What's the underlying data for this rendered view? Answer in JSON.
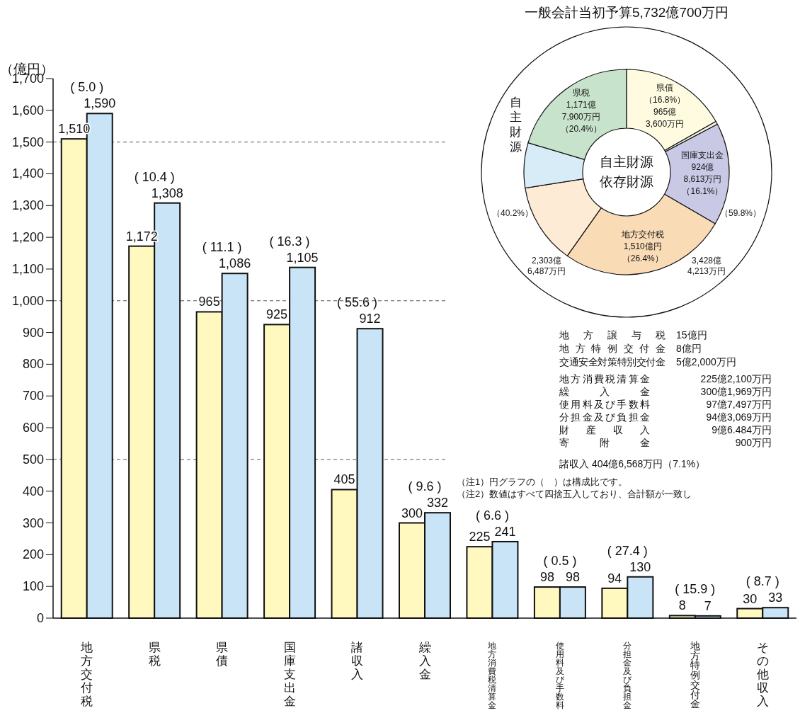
{
  "chart_data": [
    {
      "type": "bar",
      "ylabel": "（億円）",
      "categories": [
        "地方交付税",
        "県税",
        "県債",
        "国庫支出金",
        "諸収入",
        "繰入金",
        "地方消費税清算金",
        "使用料及び手数料",
        "分担金及び負担金",
        "地方特例交付金",
        "その他収入"
      ],
      "series": [
        {
          "color": "#fff9c0",
          "values": [
            1510,
            1172,
            965,
            925,
            405,
            300,
            225,
            98,
            94,
            8,
            30
          ],
          "value_labels": [
            "1,510",
            "1,172",
            "965",
            "925",
            "405",
            "300",
            "225",
            "98",
            "94",
            "8",
            "30"
          ]
        },
        {
          "color": "#c8e4f6",
          "values": [
            1590,
            1308,
            1086,
            1105,
            912,
            332,
            241,
            98,
            130,
            7,
            33
          ],
          "value_labels": [
            "1,590",
            "1,308",
            "1,086",
            "1,105",
            "912",
            "332",
            "241",
            "98",
            "130",
            "7",
            "33"
          ]
        }
      ],
      "ylim": [
        0,
        1700
      ],
      "yticks": [
        0,
        {
          "value": 100,
          "label": "100"
        },
        200,
        300,
        400,
        500,
        600,
        700,
        800,
        900,
        {
          "value": 1000,
          "label": "1,000"
        },
        {
          "value": 1100,
          "label": "1,100"
        },
        {
          "value": 1200,
          "label": "1,200"
        },
        {
          "value": 1300,
          "label": "1,300"
        },
        {
          "value": 1400,
          "label": "1,400"
        },
        {
          "value": 1500,
          "label": "1,500"
        },
        {
          "value": 1600,
          "label": "1,600"
        },
        {
          "value": 1700,
          "label": "1,700"
        }
      ],
      "ref_lines": [
        {
          "axis": "y",
          "value": 500,
          "line_style": "dashed"
        },
        {
          "axis": "y",
          "value": 1000,
          "line_style": "dashed"
        },
        {
          "axis": "y",
          "value": 1500,
          "line_style": "dashed"
        }
      ],
      "annotations": [
        {
          "text": "( 5.0 )",
          "x": "地方交付税",
          "y": 1590
        },
        {
          "text": "( 10.4 )",
          "x": "県税",
          "y": 1308
        },
        {
          "text": "( 11.1 )",
          "x": "県債",
          "y": 1086
        },
        {
          "text": "( 16.3 )",
          "x": "国庫支出金",
          "y": 1105
        },
        {
          "text": "( 55.6 )",
          "x": "諸収入",
          "y": 912
        },
        {
          "text": "( 9.6 )",
          "x": "繰入金",
          "y": 332
        },
        {
          "text": "( 6.6 )",
          "x": "地方消費税清算金",
          "y": 241
        },
        {
          "text": "( 0.5 )",
          "x": "使用料及び手数料",
          "y": 98
        },
        {
          "text": "( 27.4 )",
          "x": "分担金及び負担金",
          "y": 130
        },
        {
          "text": "( 15.9 )",
          "x": "地方特例交付金",
          "y": 8
        },
        {
          "text": "( 8.7 )",
          "x": "その他収入",
          "y": 33
        }
      ]
    },
    {
      "type": "donut",
      "title": "一般会計当初予算5,732億700万円",
      "categories": [
        "県債",
        null,
        "国庫支出金",
        "地方交付税",
        null,
        null,
        "県税"
      ],
      "values": [
        16.8,
        0.5,
        16.1,
        26.4,
        12.7,
        7.1,
        20.4
      ],
      "colors": [
        "#fefbe0",
        "#f3efe0",
        "#c9c9e6",
        "#f9dcb6",
        "#fdebd5",
        "#d8ecf8",
        "#c8e3cc"
      ],
      "value_labels": [
        "（16.8%）965億3,600万円",
        null,
        "924億8,613万円（16.1%）",
        "1,510億円（26.4%）",
        null,
        null,
        "1,171億7,900万円（20.4%）"
      ],
      "annotations": [
        "自主財源",
        "依存財源",
        "自主財源",
        "（40.2%）",
        "2,303億6,487万円",
        "（59.8%）",
        "3,428億4,213万円",
        "地方譲与税 15億円",
        "地方特例交付金 8億円",
        "交通安全対策特別交付金 5億2,000万円",
        "地方消費税清算金 225億2,100万円",
        "繰入金 300億1,969万円",
        "使用料及び手数料 97億7,497万円",
        "分担金及び負担金 94億3,069万円",
        "財産収入 9億6.484万円",
        "寄附金 900万円",
        "諸収入 404億6,568万円（7.1%）",
        "（注1）円グラフの（　）は構成比です。",
        "（注2）数値はすべて四捨五入しており、合計額が一致し"
      ]
    }
  ]
}
